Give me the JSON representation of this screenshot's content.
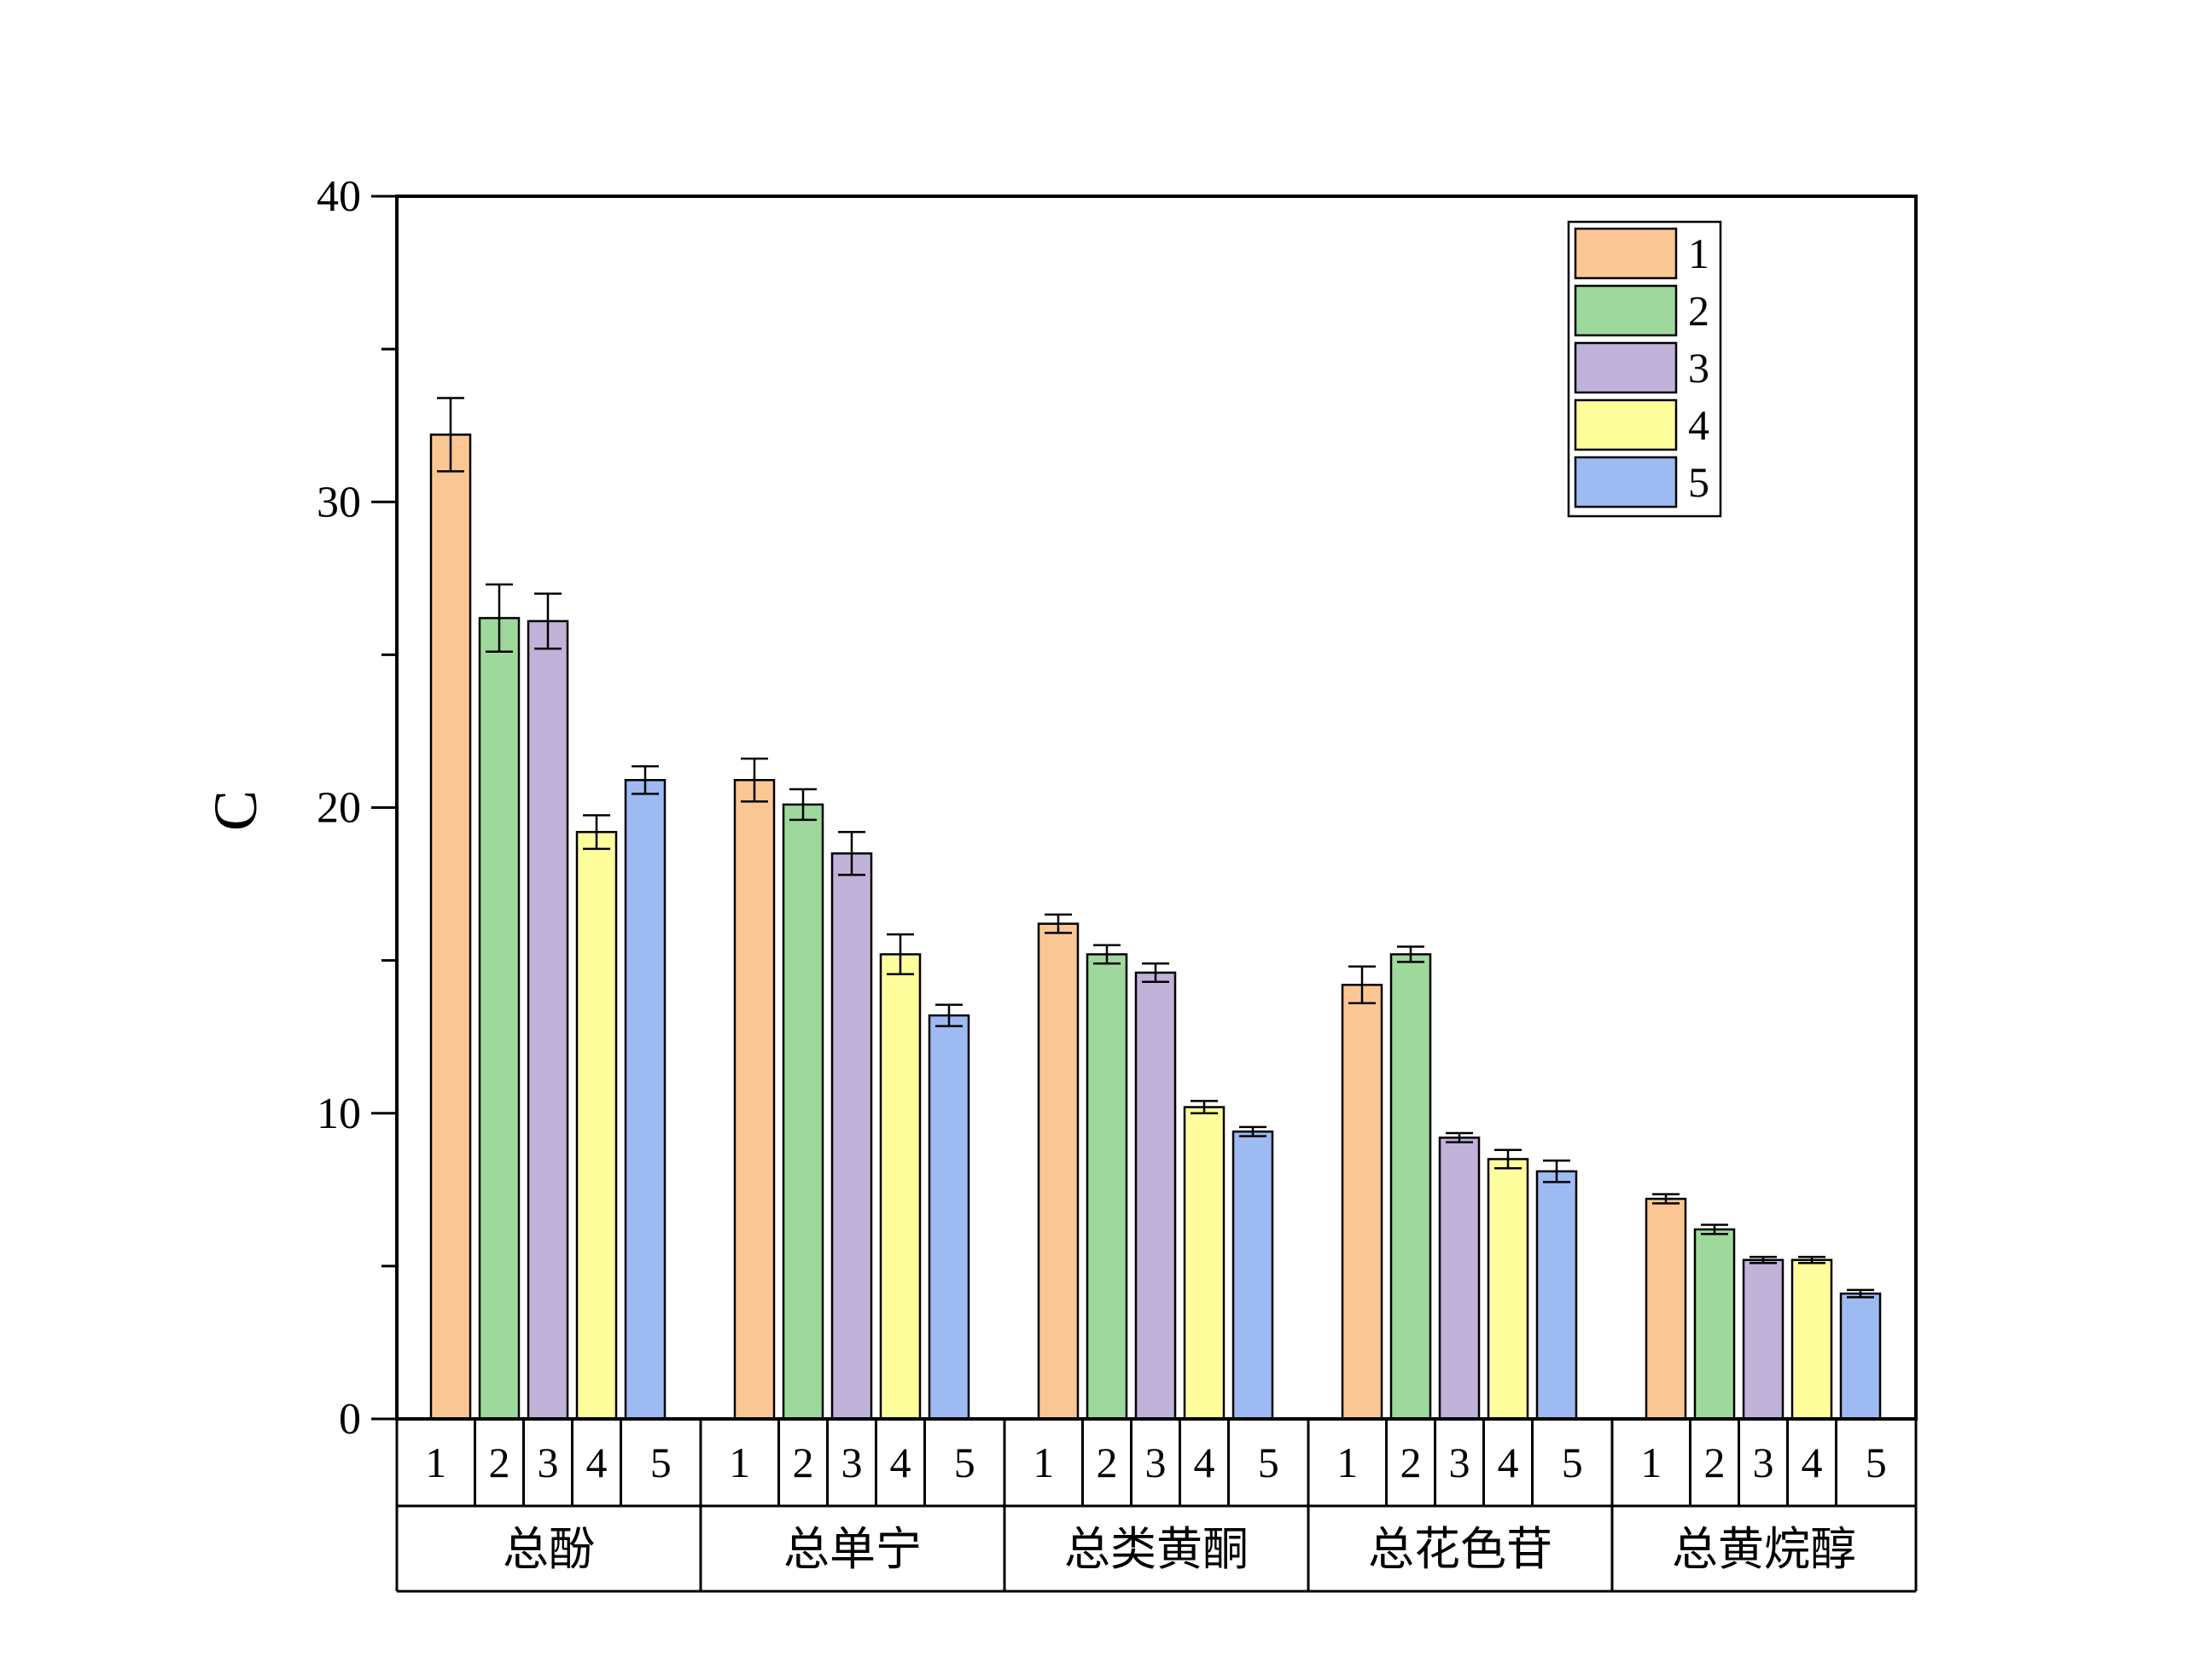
{
  "chart_data": {
    "type": "bar",
    "title": "",
    "xlabel": "",
    "ylabel": "C",
    "ylim": [
      0,
      40
    ],
    "yticks": [
      0,
      10,
      20,
      30,
      40
    ],
    "grid": false,
    "legend_position": "top-right",
    "groups": [
      "总酚",
      "总单宁",
      "总类黄酮",
      "总花色苷",
      "总黄烷醇"
    ],
    "categories": [
      "1",
      "2",
      "3",
      "4",
      "5"
    ],
    "series": [
      {
        "name": "1",
        "color": "#FAC794",
        "values": [
          32.2,
          20.9,
          16.2,
          14.2,
          7.2
        ],
        "errors": [
          1.2,
          0.7,
          0.3,
          0.6,
          0.15
        ]
      },
      {
        "name": "2",
        "color": "#9ED89D",
        "values": [
          26.2,
          20.1,
          15.2,
          15.2,
          6.2
        ],
        "errors": [
          1.1,
          0.5,
          0.3,
          0.25,
          0.15
        ]
      },
      {
        "name": "3",
        "color": "#C1B2D9",
        "values": [
          26.1,
          18.5,
          14.6,
          9.2,
          5.2
        ],
        "errors": [
          0.9,
          0.7,
          0.3,
          0.15,
          0.1
        ]
      },
      {
        "name": "4",
        "color": "#FEFE9C",
        "values": [
          19.2,
          15.2,
          10.2,
          8.5,
          5.2
        ],
        "errors": [
          0.55,
          0.65,
          0.2,
          0.3,
          0.1
        ]
      },
      {
        "name": "5",
        "color": "#9EBAF3",
        "values": [
          20.9,
          13.2,
          9.4,
          8.1,
          4.1
        ],
        "errors": [
          0.45,
          0.35,
          0.15,
          0.35,
          0.12
        ]
      }
    ]
  }
}
